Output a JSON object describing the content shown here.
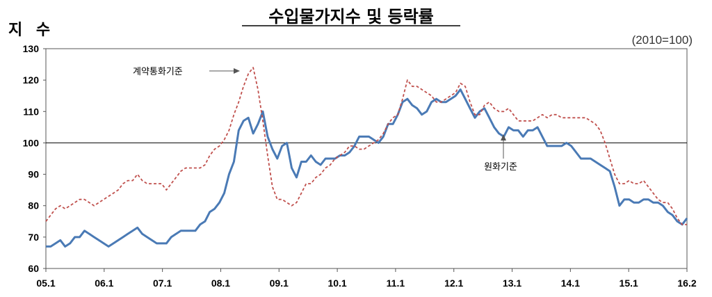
{
  "chart_data": {
    "type": "line",
    "title": "수입물가지수 및 등락률",
    "ylabel": "지 수",
    "base_note": "(2010=100)",
    "ylim": [
      60,
      130
    ],
    "y_ticks": [
      60,
      70,
      80,
      90,
      100,
      110,
      120,
      130
    ],
    "reference_line": 100,
    "x_tick_labels": [
      "05.1",
      "06.1",
      "07.1",
      "08.1",
      "09.1",
      "10.1",
      "11.1",
      "12.1",
      "13.1",
      "14.1",
      "15.1",
      "16.2"
    ],
    "series": [
      {
        "name": "원화기준",
        "color": "#4a7ab5",
        "style": "solid",
        "points": [
          [
            0,
            67
          ],
          [
            1,
            67
          ],
          [
            2,
            68
          ],
          [
            3,
            69
          ],
          [
            4,
            67
          ],
          [
            5,
            68
          ],
          [
            6,
            70
          ],
          [
            7,
            70
          ],
          [
            8,
            72
          ],
          [
            9,
            71
          ],
          [
            10,
            70
          ],
          [
            11,
            69
          ],
          [
            12,
            68
          ],
          [
            13,
            67
          ],
          [
            14,
            68
          ],
          [
            15,
            69
          ],
          [
            16,
            70
          ],
          [
            17,
            71
          ],
          [
            18,
            72
          ],
          [
            19,
            73
          ],
          [
            20,
            71
          ],
          [
            21,
            70
          ],
          [
            22,
            69
          ],
          [
            23,
            68
          ],
          [
            24,
            68
          ],
          [
            25,
            68
          ],
          [
            26,
            70
          ],
          [
            27,
            71
          ],
          [
            28,
            72
          ],
          [
            29,
            72
          ],
          [
            30,
            72
          ],
          [
            31,
            72
          ],
          [
            32,
            74
          ],
          [
            33,
            75
          ],
          [
            34,
            78
          ],
          [
            35,
            79
          ],
          [
            36,
            81
          ],
          [
            37,
            84
          ],
          [
            38,
            90
          ],
          [
            39,
            94
          ],
          [
            40,
            104
          ],
          [
            41,
            107
          ],
          [
            42,
            108
          ],
          [
            43,
            103
          ],
          [
            44,
            106
          ],
          [
            45,
            110
          ],
          [
            46,
            102
          ],
          [
            47,
            98
          ],
          [
            48,
            95
          ],
          [
            49,
            99
          ],
          [
            50,
            100
          ],
          [
            51,
            92
          ],
          [
            52,
            89
          ],
          [
            53,
            94
          ],
          [
            54,
            94
          ],
          [
            55,
            96
          ],
          [
            56,
            94
          ],
          [
            57,
            93
          ],
          [
            58,
            95
          ],
          [
            59,
            95
          ],
          [
            60,
            95
          ],
          [
            61,
            96
          ],
          [
            62,
            96
          ],
          [
            63,
            97
          ],
          [
            64,
            99
          ],
          [
            65,
            102
          ],
          [
            66,
            102
          ],
          [
            67,
            102
          ],
          [
            68,
            101
          ],
          [
            69,
            100
          ],
          [
            70,
            102
          ],
          [
            71,
            106
          ],
          [
            72,
            106
          ],
          [
            73,
            109
          ],
          [
            74,
            113
          ],
          [
            75,
            114
          ],
          [
            76,
            112
          ],
          [
            77,
            111
          ],
          [
            78,
            109
          ],
          [
            79,
            110
          ],
          [
            80,
            113
          ],
          [
            81,
            114
          ],
          [
            82,
            113
          ],
          [
            83,
            113
          ],
          [
            84,
            114
          ],
          [
            85,
            115
          ],
          [
            86,
            117
          ],
          [
            87,
            114
          ],
          [
            88,
            111
          ],
          [
            89,
            108
          ],
          [
            90,
            110
          ],
          [
            91,
            111
          ],
          [
            92,
            108
          ],
          [
            93,
            105
          ],
          [
            94,
            103
          ],
          [
            95,
            102
          ],
          [
            96,
            105
          ],
          [
            97,
            104
          ],
          [
            98,
            104
          ],
          [
            99,
            102
          ],
          [
            100,
            104
          ],
          [
            101,
            104
          ],
          [
            102,
            105
          ],
          [
            103,
            102
          ],
          [
            104,
            99
          ],
          [
            105,
            99
          ],
          [
            106,
            99
          ],
          [
            107,
            99
          ],
          [
            108,
            100
          ],
          [
            109,
            99
          ],
          [
            110,
            97
          ],
          [
            111,
            95
          ],
          [
            112,
            95
          ],
          [
            113,
            95
          ],
          [
            114,
            94
          ],
          [
            115,
            93
          ],
          [
            116,
            92
          ],
          [
            117,
            91
          ],
          [
            118,
            86
          ],
          [
            119,
            80
          ],
          [
            120,
            82
          ],
          [
            121,
            82
          ],
          [
            122,
            81
          ],
          [
            123,
            81
          ],
          [
            124,
            82
          ],
          [
            125,
            82
          ],
          [
            126,
            81
          ],
          [
            127,
            81
          ],
          [
            128,
            80
          ],
          [
            129,
            78
          ],
          [
            130,
            77
          ],
          [
            131,
            75
          ],
          [
            132,
            74
          ],
          [
            133,
            76
          ]
        ]
      },
      {
        "name": "계약통화기준",
        "color": "#c0504d",
        "style": "dashed",
        "points": [
          [
            0,
            75
          ],
          [
            1,
            77
          ],
          [
            2,
            79
          ],
          [
            3,
            80
          ],
          [
            4,
            79
          ],
          [
            5,
            80
          ],
          [
            6,
            81
          ],
          [
            7,
            82
          ],
          [
            8,
            82
          ],
          [
            9,
            81
          ],
          [
            10,
            80
          ],
          [
            11,
            81
          ],
          [
            12,
            82
          ],
          [
            13,
            83
          ],
          [
            14,
            84
          ],
          [
            15,
            85
          ],
          [
            16,
            87
          ],
          [
            17,
            88
          ],
          [
            18,
            88
          ],
          [
            19,
            90
          ],
          [
            20,
            88
          ],
          [
            21,
            87
          ],
          [
            22,
            87
          ],
          [
            23,
            87
          ],
          [
            24,
            87
          ],
          [
            25,
            85
          ],
          [
            26,
            87
          ],
          [
            27,
            89
          ],
          [
            28,
            91
          ],
          [
            29,
            92
          ],
          [
            30,
            92
          ],
          [
            31,
            92
          ],
          [
            32,
            92
          ],
          [
            33,
            93
          ],
          [
            34,
            96
          ],
          [
            35,
            98
          ],
          [
            36,
            99
          ],
          [
            37,
            101
          ],
          [
            38,
            104
          ],
          [
            39,
            109
          ],
          [
            40,
            113
          ],
          [
            41,
            118
          ],
          [
            42,
            122
          ],
          [
            43,
            124
          ],
          [
            44,
            117
          ],
          [
            45,
            107
          ],
          [
            46,
            96
          ],
          [
            47,
            86
          ],
          [
            48,
            82
          ],
          [
            49,
            82
          ],
          [
            50,
            81
          ],
          [
            51,
            80
          ],
          [
            52,
            81
          ],
          [
            53,
            84
          ],
          [
            54,
            87
          ],
          [
            55,
            87
          ],
          [
            56,
            89
          ],
          [
            57,
            90
          ],
          [
            58,
            92
          ],
          [
            59,
            93
          ],
          [
            60,
            95
          ],
          [
            61,
            96
          ],
          [
            62,
            97
          ],
          [
            63,
            99
          ],
          [
            64,
            99
          ],
          [
            65,
            98
          ],
          [
            66,
            98
          ],
          [
            67,
            99
          ],
          [
            68,
            100
          ],
          [
            69,
            101
          ],
          [
            70,
            103
          ],
          [
            71,
            106
          ],
          [
            72,
            108
          ],
          [
            73,
            109
          ],
          [
            74,
            114
          ],
          [
            75,
            120
          ],
          [
            76,
            118
          ],
          [
            77,
            118
          ],
          [
            78,
            117
          ],
          [
            79,
            116
          ],
          [
            80,
            115
          ],
          [
            81,
            113
          ],
          [
            82,
            113
          ],
          [
            83,
            114
          ],
          [
            84,
            115
          ],
          [
            85,
            116
          ],
          [
            86,
            119
          ],
          [
            87,
            118
          ],
          [
            88,
            113
          ],
          [
            89,
            109
          ],
          [
            90,
            109
          ],
          [
            91,
            112
          ],
          [
            92,
            113
          ],
          [
            93,
            111
          ],
          [
            94,
            110
          ],
          [
            95,
            110
          ],
          [
            96,
            111
          ],
          [
            97,
            109
          ],
          [
            98,
            107
          ],
          [
            99,
            107
          ],
          [
            100,
            107
          ],
          [
            101,
            107
          ],
          [
            102,
            108
          ],
          [
            103,
            109
          ],
          [
            104,
            108
          ],
          [
            105,
            109
          ],
          [
            106,
            109
          ],
          [
            107,
            108
          ],
          [
            108,
            108
          ],
          [
            109,
            108
          ],
          [
            110,
            108
          ],
          [
            111,
            108
          ],
          [
            112,
            108
          ],
          [
            113,
            107
          ],
          [
            114,
            106
          ],
          [
            115,
            104
          ],
          [
            116,
            100
          ],
          [
            117,
            95
          ],
          [
            118,
            90
          ],
          [
            119,
            87
          ],
          [
            120,
            87
          ],
          [
            121,
            88
          ],
          [
            122,
            87
          ],
          [
            123,
            87
          ],
          [
            124,
            88
          ],
          [
            125,
            86
          ],
          [
            126,
            84
          ],
          [
            127,
            82
          ],
          [
            128,
            81
          ],
          [
            129,
            81
          ],
          [
            130,
            79
          ],
          [
            131,
            76
          ],
          [
            132,
            74
          ],
          [
            133,
            74
          ]
        ]
      }
    ],
    "annotations": [
      {
        "text": "계약통화기준",
        "series": "계약통화기준"
      },
      {
        "text": "원화기준",
        "series": "원화기준"
      }
    ]
  }
}
